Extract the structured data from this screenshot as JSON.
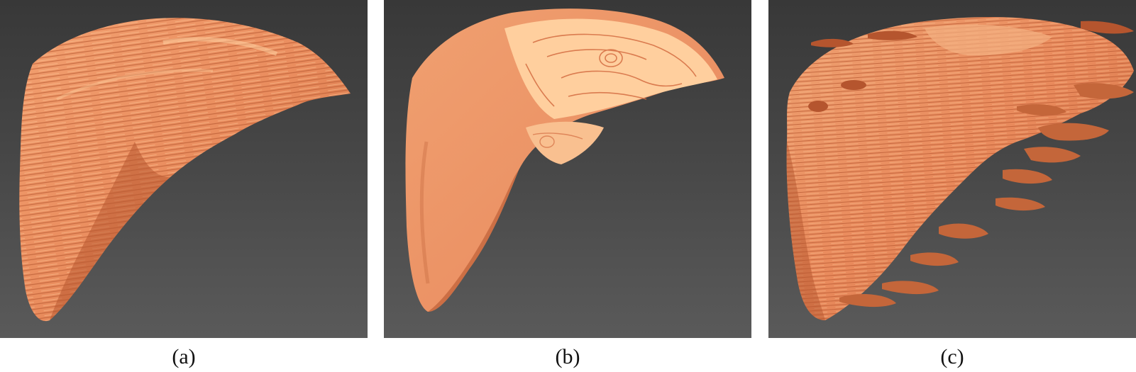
{
  "panels": [
    {
      "id": "a",
      "caption": "(a)"
    },
    {
      "id": "b",
      "caption": "(b)"
    },
    {
      "id": "c",
      "caption": "(c)"
    }
  ],
  "colors": {
    "background_top": "#383838",
    "background_bottom": "#5a5a5a",
    "surface_main": "#e98a5c",
    "surface_light": "#f6b486",
    "surface_highlight": "#ffd4a3",
    "surface_shadow": "#b8572f",
    "contour_line": "#c8613a"
  }
}
